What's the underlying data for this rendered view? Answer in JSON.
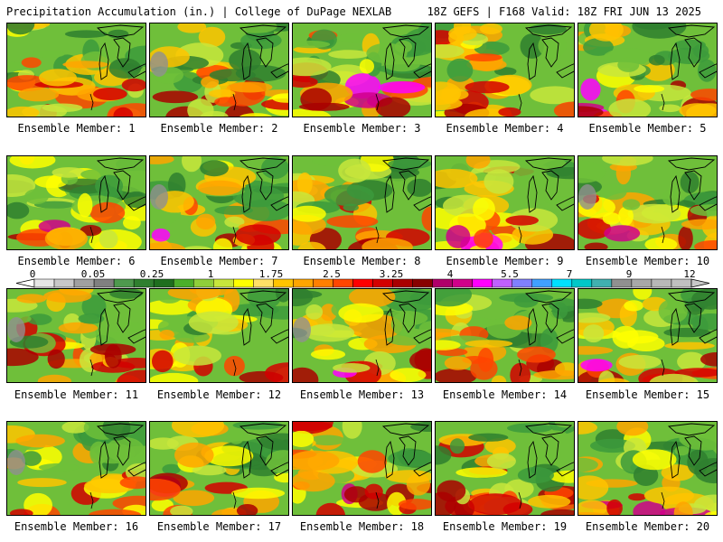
{
  "header": {
    "left": "Precipitation Accumulation (in.) | College of DuPage NEXLAB",
    "right": "18Z GEFS | F168 Valid: 18Z FRI JUN 13 2025"
  },
  "panels": [
    {
      "label": "Ensemble Member: 1",
      "member": 1
    },
    {
      "label": "Ensemble Member: 2",
      "member": 2
    },
    {
      "label": "Ensemble Member: 3",
      "member": 3
    },
    {
      "label": "Ensemble Member: 4",
      "member": 4
    },
    {
      "label": "Ensemble Member: 5",
      "member": 5
    },
    {
      "label": "Ensemble Member: 6",
      "member": 6
    },
    {
      "label": "Ensemble Member: 7",
      "member": 7
    },
    {
      "label": "Ensemble Member: 8",
      "member": 8
    },
    {
      "label": "Ensemble Member: 9",
      "member": 9
    },
    {
      "label": "Ensemble Member: 10",
      "member": 10
    },
    {
      "label": "Ensemble Member: 11",
      "member": 11
    },
    {
      "label": "Ensemble Member: 12",
      "member": 12
    },
    {
      "label": "Ensemble Member: 13",
      "member": 13
    },
    {
      "label": "Ensemble Member: 14",
      "member": 14
    },
    {
      "label": "Ensemble Member: 15",
      "member": 15
    },
    {
      "label": "Ensemble Member: 16",
      "member": 16
    },
    {
      "label": "Ensemble Member: 17",
      "member": 17
    },
    {
      "label": "Ensemble Member: 18",
      "member": 18
    },
    {
      "label": "Ensemble Member: 19",
      "member": 19
    },
    {
      "label": "Ensemble Member: 20",
      "member": 20
    }
  ],
  "colorbar": {
    "tick_labels": [
      "0",
      "0.05",
      "0.25",
      "1",
      "1.75",
      "2.5",
      "3.25",
      "4",
      "5.5",
      "7",
      "9",
      "12"
    ],
    "colors": [
      "#e6e6e6",
      "#c8c8c8",
      "#a0a0a0",
      "#808080",
      "#4e9a4e",
      "#2f7f2f",
      "#1e6e1e",
      "#4caf2a",
      "#8fcf3a",
      "#c8e63c",
      "#ffff00",
      "#ffe066",
      "#ffc400",
      "#ffa500",
      "#ff7f00",
      "#ff4500",
      "#ff0000",
      "#d40000",
      "#aa0000",
      "#880000",
      "#b0006a",
      "#d0008a",
      "#ff00ff",
      "#c060ff",
      "#8080ff",
      "#40a0ff",
      "#00e0ff",
      "#00c8c8",
      "#40b0b0",
      "#909090",
      "#a8a8a8",
      "#b8b8b8",
      "#c0c0c0"
    ]
  },
  "colors": {
    "land_green": "#3c9a3c",
    "outline": "#000000"
  }
}
